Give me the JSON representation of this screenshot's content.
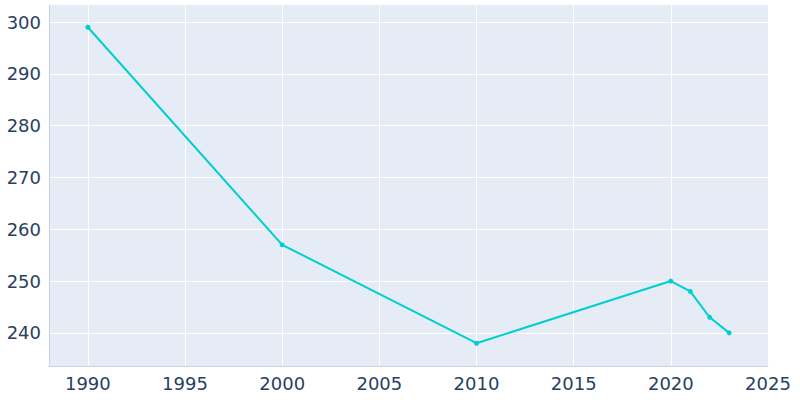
{
  "chart_data": {
    "type": "line",
    "x": [
      1990,
      2000,
      2010,
      2020,
      2021,
      2022,
      2023
    ],
    "values": [
      299,
      257,
      238,
      250,
      248,
      243,
      240
    ],
    "color": "#00ced1",
    "marker": "circle",
    "xlim": [
      1988,
      2025
    ],
    "xticks": [
      1990,
      1995,
      2000,
      2005,
      2010,
      2015,
      2020,
      2025
    ],
    "ylim": [
      233.6,
      303.3
    ],
    "yticks": [
      240,
      250,
      260,
      270,
      280,
      290,
      300
    ],
    "grid": true
  }
}
